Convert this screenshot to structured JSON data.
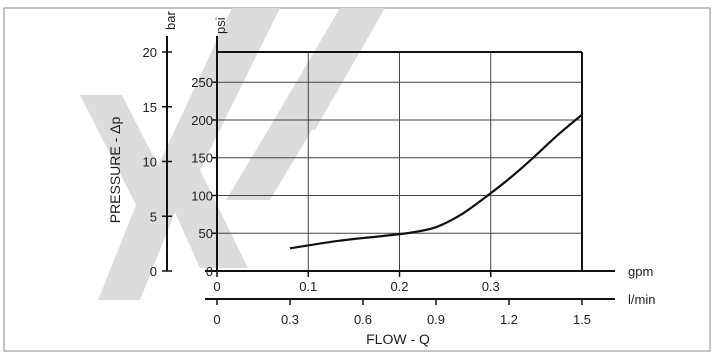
{
  "chart_data": {
    "type": "line",
    "title": "",
    "xlabel": "FLOW - Q",
    "ylabel": "PRESSURE - Δp",
    "units": {
      "bar": "bar",
      "psi": "psi",
      "gpm": "gpm",
      "lmin": "l/min"
    },
    "axes": {
      "bar": {
        "lim": [
          0,
          20
        ],
        "ticks": [
          0,
          5,
          10,
          15,
          20
        ],
        "tick_labels": [
          "0",
          "5",
          "10",
          "15",
          "20"
        ]
      },
      "psi": {
        "lim": [
          0,
          290
        ],
        "ticks": [
          0,
          50,
          100,
          150,
          200,
          250
        ],
        "tick_labels": [
          "0",
          "50",
          "100",
          "150",
          "200",
          "250"
        ]
      },
      "gpm": {
        "lim": [
          0,
          0.4
        ],
        "ticks": [
          0,
          0.1,
          0.2,
          0.3
        ],
        "tick_labels": [
          "0",
          "0.1",
          "0.2",
          "0.3"
        ]
      },
      "lmin": {
        "lim": [
          0,
          1.5
        ],
        "ticks": [
          0,
          0.3,
          0.6,
          0.9,
          1.2,
          1.5
        ],
        "tick_labels": [
          "0",
          "0.3",
          "0.6",
          "0.9",
          "1.2",
          "1.5"
        ]
      }
    },
    "grid": true,
    "series": [
      {
        "x_unit": "l/min",
        "y_unit": "psi",
        "x": [
          0.3,
          0.5,
          0.7,
          0.8,
          0.9,
          1.0,
          1.1,
          1.2,
          1.3,
          1.4,
          1.5
        ],
        "values": [
          30,
          40,
          47,
          51,
          58,
          74,
          97,
          122,
          150,
          180,
          207
        ]
      }
    ]
  },
  "colors": {
    "line": "#111111",
    "frame": "#111111",
    "grid": "#444444",
    "text": "#1e1e1e",
    "watermark": "#dcdcdc"
  }
}
